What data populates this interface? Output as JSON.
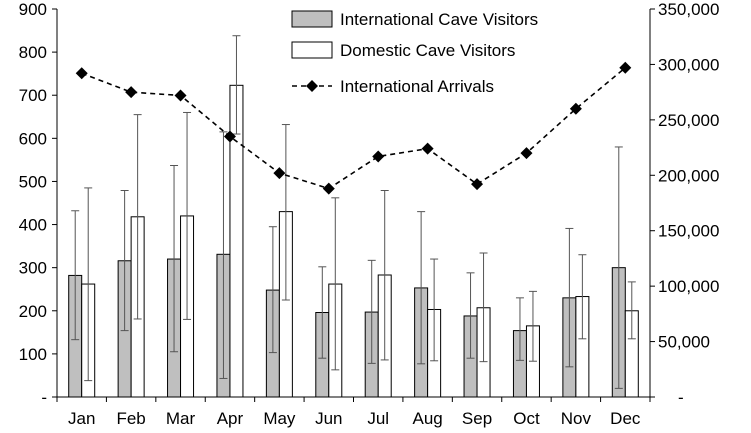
{
  "chart_data": {
    "type": "bar",
    "categories": [
      "Jan",
      "Feb",
      "Mar",
      "Apr",
      "May",
      "Jun",
      "Jul",
      "Aug",
      "Sep",
      "Oct",
      "Nov",
      "Dec"
    ],
    "series": [
      {
        "name": "International Cave Visitors",
        "kind": "bar",
        "axis": "left",
        "color": "#bfbfbf",
        "values": [
          282,
          316,
          320,
          331,
          248,
          196,
          197,
          253,
          188,
          154,
          230,
          300
        ],
        "error_low": [
          133,
          154,
          105,
          43,
          103,
          90,
          78,
          77,
          90,
          85,
          70,
          20
        ],
        "error_high": [
          432,
          479,
          537,
          615,
          395,
          302,
          317,
          430,
          288,
          230,
          391,
          580
        ]
      },
      {
        "name": "Domestic Cave Visitors",
        "kind": "bar",
        "axis": "left",
        "color": "#ffffff",
        "values": [
          262,
          418,
          420,
          723,
          430,
          262,
          283,
          203,
          207,
          165,
          233,
          200
        ],
        "error_low": [
          38,
          181,
          180,
          610,
          225,
          63,
          86,
          84,
          82,
          83,
          135,
          135
        ],
        "error_high": [
          485,
          655,
          660,
          838,
          632,
          462,
          479,
          320,
          334,
          245,
          330,
          267
        ]
      },
      {
        "name": "International Arrivals",
        "kind": "line",
        "axis": "right",
        "color": "#000000",
        "values": [
          292000,
          275000,
          272000,
          235000,
          202000,
          188000,
          217000,
          224000,
          192000,
          220000,
          260000,
          297000
        ]
      }
    ],
    "y_left": {
      "min": 0,
      "max": 900,
      "step": 100,
      "zero_label": "-"
    },
    "y_right": {
      "min": 0,
      "max": 350000,
      "step": 50000,
      "zero_label": "-"
    },
    "legend_position": "top-center",
    "grid": false
  }
}
